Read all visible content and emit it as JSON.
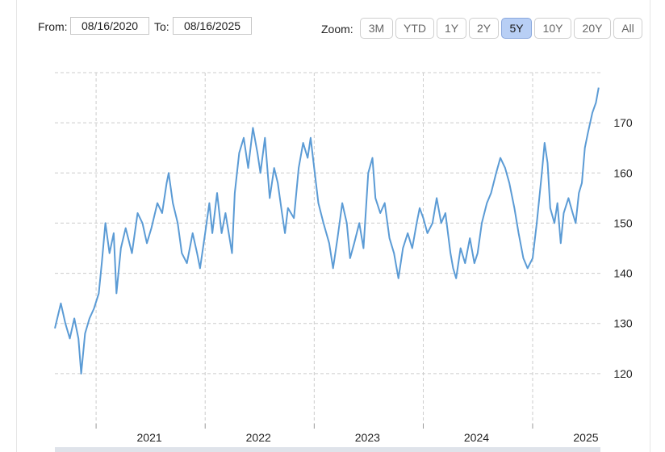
{
  "toolbar": {
    "from_label": "From:",
    "from_value": "08/16/2020",
    "to_label": "To:",
    "to_value": "08/16/2025",
    "zoom_label": "Zoom:",
    "zoom_buttons": [
      "3M",
      "YTD",
      "1Y",
      "2Y",
      "5Y",
      "10Y",
      "20Y",
      "All"
    ],
    "active_zoom": "5Y"
  },
  "colors": {
    "line": "#5b9bd5",
    "grid": "#cccccc",
    "active_button": "#b8cff5"
  },
  "chart_data": {
    "type": "line",
    "title": "",
    "xlabel": "",
    "ylabel": "",
    "x_tick_labels": [
      "2021",
      "2022",
      "2023",
      "2024",
      "2025"
    ],
    "y_tick_labels": [
      "120",
      "130",
      "140",
      "150",
      "160",
      "170"
    ],
    "xlim": [
      "2020-08-16",
      "2025-08-16"
    ],
    "ylim": [
      110,
      180
    ],
    "grid": true,
    "legend": "none",
    "series": [
      {
        "values": [
          [
            "2020-08-16",
            129
          ],
          [
            "2020-09-05",
            134
          ],
          [
            "2020-09-20",
            130
          ],
          [
            "2020-10-05",
            127
          ],
          [
            "2020-10-20",
            131
          ],
          [
            "2020-11-03",
            127
          ],
          [
            "2020-11-12",
            120
          ],
          [
            "2020-11-25",
            128
          ],
          [
            "2020-12-10",
            131
          ],
          [
            "2020-12-25",
            133
          ],
          [
            "2021-01-10",
            136
          ],
          [
            "2021-01-20",
            142
          ],
          [
            "2021-02-01",
            150
          ],
          [
            "2021-02-15",
            144
          ],
          [
            "2021-03-01",
            148
          ],
          [
            "2021-03-10",
            136
          ],
          [
            "2021-03-25",
            145
          ],
          [
            "2021-04-10",
            149
          ],
          [
            "2021-05-01",
            144
          ],
          [
            "2021-05-20",
            152
          ],
          [
            "2021-06-05",
            150
          ],
          [
            "2021-06-20",
            146
          ],
          [
            "2021-07-05",
            149
          ],
          [
            "2021-07-25",
            154
          ],
          [
            "2021-08-10",
            152
          ],
          [
            "2021-08-25",
            158
          ],
          [
            "2021-09-01",
            160
          ],
          [
            "2021-09-15",
            154
          ],
          [
            "2021-10-01",
            150
          ],
          [
            "2021-10-15",
            144
          ],
          [
            "2021-11-01",
            142
          ],
          [
            "2021-11-20",
            148
          ],
          [
            "2021-12-05",
            144
          ],
          [
            "2021-12-15",
            141
          ],
          [
            "2022-01-01",
            148
          ],
          [
            "2022-01-15",
            154
          ],
          [
            "2022-01-25",
            148
          ],
          [
            "2022-02-10",
            156
          ],
          [
            "2022-02-25",
            148
          ],
          [
            "2022-03-10",
            152
          ],
          [
            "2022-04-01",
            144
          ],
          [
            "2022-04-10",
            156
          ],
          [
            "2022-04-25",
            164
          ],
          [
            "2022-05-10",
            167
          ],
          [
            "2022-05-25",
            161
          ],
          [
            "2022-06-10",
            169
          ],
          [
            "2022-06-25",
            164
          ],
          [
            "2022-07-05",
            160
          ],
          [
            "2022-07-20",
            167
          ],
          [
            "2022-08-05",
            155
          ],
          [
            "2022-08-20",
            161
          ],
          [
            "2022-09-01",
            158
          ],
          [
            "2022-09-15",
            152
          ],
          [
            "2022-09-25",
            148
          ],
          [
            "2022-10-05",
            153
          ],
          [
            "2022-10-25",
            151
          ],
          [
            "2022-11-10",
            161
          ],
          [
            "2022-11-25",
            166
          ],
          [
            "2022-12-10",
            163
          ],
          [
            "2022-12-20",
            167
          ],
          [
            "2023-01-01",
            161
          ],
          [
            "2023-01-15",
            154
          ],
          [
            "2023-02-01",
            150
          ],
          [
            "2023-02-20",
            146
          ],
          [
            "2023-03-05",
            141
          ],
          [
            "2023-03-20",
            147
          ],
          [
            "2023-04-05",
            154
          ],
          [
            "2023-04-20",
            150
          ],
          [
            "2023-05-01",
            143
          ],
          [
            "2023-05-15",
            146
          ],
          [
            "2023-06-01",
            150
          ],
          [
            "2023-06-15",
            145
          ],
          [
            "2023-07-01",
            160
          ],
          [
            "2023-07-15",
            163
          ],
          [
            "2023-07-25",
            155
          ],
          [
            "2023-08-10",
            152
          ],
          [
            "2023-08-25",
            154
          ],
          [
            "2023-09-10",
            147
          ],
          [
            "2023-09-25",
            144
          ],
          [
            "2023-10-10",
            139
          ],
          [
            "2023-10-25",
            145
          ],
          [
            "2023-11-10",
            148
          ],
          [
            "2023-11-25",
            145
          ],
          [
            "2023-12-10",
            150
          ],
          [
            "2023-12-20",
            153
          ],
          [
            "2024-01-01",
            151
          ],
          [
            "2024-01-15",
            148
          ],
          [
            "2024-02-01",
            150
          ],
          [
            "2024-02-15",
            155
          ],
          [
            "2024-03-01",
            150
          ],
          [
            "2024-03-15",
            152
          ],
          [
            "2024-04-01",
            144
          ],
          [
            "2024-04-10",
            141
          ],
          [
            "2024-04-20",
            139
          ],
          [
            "2024-05-05",
            145
          ],
          [
            "2024-05-20",
            142
          ],
          [
            "2024-06-05",
            147
          ],
          [
            "2024-06-20",
            142
          ],
          [
            "2024-07-01",
            144
          ],
          [
            "2024-07-15",
            150
          ],
          [
            "2024-08-01",
            154
          ],
          [
            "2024-08-15",
            156
          ],
          [
            "2024-09-01",
            160
          ],
          [
            "2024-09-15",
            163
          ],
          [
            "2024-10-01",
            161
          ],
          [
            "2024-10-15",
            158
          ],
          [
            "2024-11-01",
            153
          ],
          [
            "2024-11-15",
            148
          ],
          [
            "2024-12-01",
            143
          ],
          [
            "2024-12-15",
            141
          ],
          [
            "2025-01-01",
            143
          ],
          [
            "2025-01-15",
            150
          ],
          [
            "2025-02-01",
            160
          ],
          [
            "2025-02-10",
            166
          ],
          [
            "2025-02-20",
            162
          ],
          [
            "2025-03-01",
            153
          ],
          [
            "2025-03-15",
            150
          ],
          [
            "2025-03-25",
            154
          ],
          [
            "2025-04-05",
            146
          ],
          [
            "2025-04-15",
            152
          ],
          [
            "2025-05-01",
            155
          ],
          [
            "2025-05-15",
            152
          ],
          [
            "2025-05-25",
            150
          ],
          [
            "2025-06-05",
            156
          ],
          [
            "2025-06-15",
            158
          ],
          [
            "2025-06-25",
            165
          ],
          [
            "2025-07-05",
            168
          ],
          [
            "2025-07-20",
            172
          ],
          [
            "2025-08-01",
            174
          ],
          [
            "2025-08-10",
            177
          ]
        ]
      }
    ]
  }
}
